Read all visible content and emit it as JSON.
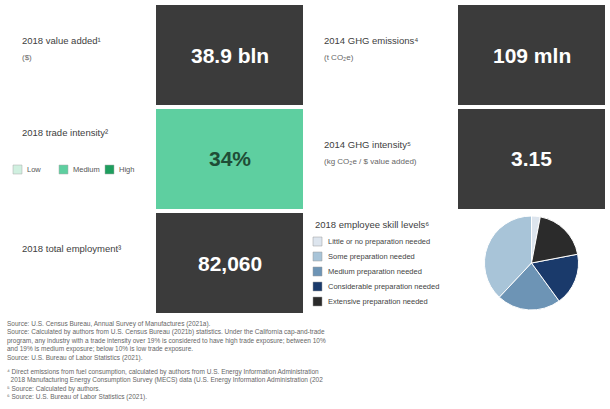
{
  "chart_data": {
    "type": "pie",
    "title": "2018 employee skill levels⁶",
    "categories": [
      "Little or no preparation needed",
      "Some preparation needed",
      "Medium preparation needed",
      "Considerable preparation needed",
      "Extensive preparation needed"
    ],
    "values": [
      3,
      38,
      22,
      18,
      19
    ],
    "colors": [
      "#dde5ee",
      "#a8c4d8",
      "#6d94b5",
      "#1a3a6b",
      "#2b2b2b"
    ],
    "annotations": [
      {
        "text": "2018 value added¹"
      },
      {
        "text": "($)"
      },
      {
        "text": "38.9 bln",
        "color": "#3b3b3b"
      },
      {
        "text": "2014 GHG emissions⁴"
      },
      {
        "text": "(t CO₂e)"
      },
      {
        "text": "109 mln",
        "color": "#3b3b3b"
      },
      {
        "text": "2018 trade intensity²"
      },
      {
        "text": "Low",
        "color": "#d0f0e0"
      },
      {
        "text": "Medium",
        "color": "#5ecfa0"
      },
      {
        "text": "High",
        "color": "#1e9e5e"
      },
      {
        "text": "34%",
        "color": "#5ecfa0"
      },
      {
        "text": "2014 GHG intensity⁵"
      },
      {
        "text": "(kg CO₂e / $ value added)"
      },
      {
        "text": "3.15",
        "color": "#3b3b3b"
      },
      {
        "text": "2018 total employment³"
      },
      {
        "text": "82,060",
        "color": "#3b3b3b"
      },
      {
        "text": "Source: U.S. Census Bureau, Annual Survey of Manufactures (2021a).\nSource: Calculated by authors from U.S. Census Bureau (2021b) statistics. Under the California cap-and-trade\nprogram, any industry with a trade intensity over 19% is considered to have high trade exposure; between 10%\nand 19% is medium exposure; below 10% is low trade exposure.\nSource: U.S. Bureau of Labor Statistics (2021)."
      },
      {
        "text": "⁴ Direct emissions from fuel consumption, calculated by authors from U.S. Energy Information Administration\n  2018 Manufacturing Energy Consumption Survey (MECS) data (U.S. Energy Information Administration (202\n⁵ Source: Calculated by authors.\n⁶ Source: U.S. Bureau of Labor Statistics (2021)."
      }
    ]
  }
}
